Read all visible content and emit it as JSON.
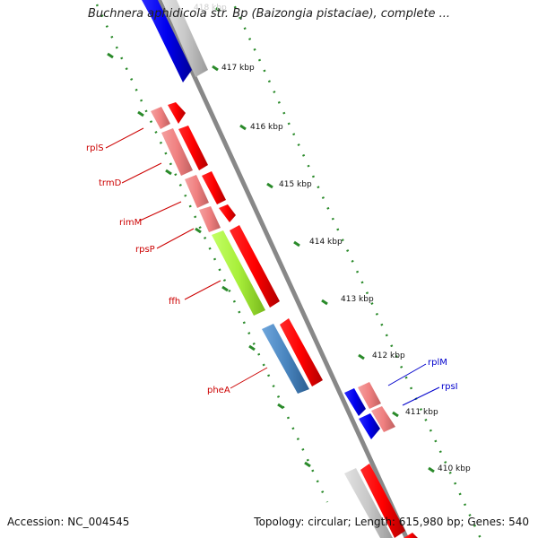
{
  "title": "Buchnera aphidicola str. Bp (Baizongia pistaciae), complete ...",
  "footer": {
    "accession": "Accession: NC_004545",
    "topology": "Topology: circular; Length: 615,980 bp; Genes: 540"
  },
  "ticks": [
    "418 kbp",
    "417 kbp",
    "416 kbp",
    "415 kbp",
    "414 kbp",
    "413 kbp",
    "412 kbp",
    "411 kbp",
    "410 kbp"
  ],
  "gene_labels": [
    "rplS",
    "trmD",
    "rimM",
    "rpsP",
    "ffh",
    "pheA",
    "rplM",
    "rpsI"
  ],
  "colors": {
    "backbone": "#888888",
    "tick": "#2a8a2a",
    "forward_red": "#ff0000",
    "rna_pink": "#f08080",
    "blue_cds": "#0000ee",
    "grey_feature": "#c8c8c8",
    "ffh_green": "#a8ef3a",
    "phea_blue": "#4a86c0",
    "label_red": "#cc0000",
    "label_blue": "#0000cc"
  }
}
